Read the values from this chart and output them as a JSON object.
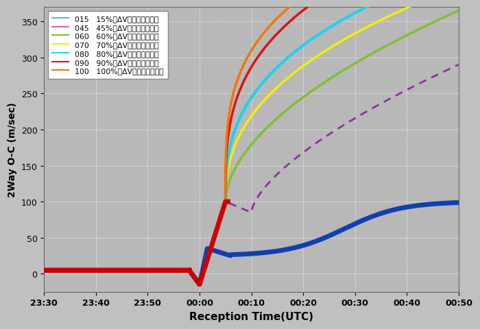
{
  "xlabel": "Reception Time(UTC)",
  "ylabel": "2Way O-C (m/sec)",
  "fig_bg_color": "#c0c0c0",
  "plot_bg_color": "#b8b8b8",
  "ylim": [
    -25,
    370
  ],
  "yticks": [
    0,
    50,
    100,
    150,
    200,
    250,
    300,
    350
  ],
  "xtick_labels": [
    "23:30",
    "23:40",
    "23:50",
    "00:00",
    "00:10",
    "00:20",
    "00:30",
    "00:40",
    "00:50"
  ],
  "legend_entries": [
    {
      "code": "015",
      "label": "15%のΔVで停止した場合",
      "color": "#5ab4e0"
    },
    {
      "code": "045",
      "label": "45%のΔVで停止した場合",
      "color": "#e060b0"
    },
    {
      "code": "060",
      "label": "60%のΔVで停止した場合",
      "color": "#80c030"
    },
    {
      "code": "070",
      "label": "70%のΔVで停止した場合",
      "color": "#f0f000"
    },
    {
      "code": "080",
      "label": "80%のΔVで停止した場合",
      "color": "#20d0f0"
    },
    {
      "code": "090",
      "label": "90%のΔVで停止した場合",
      "color": "#e01010"
    },
    {
      "code": "100",
      "label": "100%のΔVで停止した場合",
      "color": "#f07800"
    }
  ],
  "blue_color": "#1040b0",
  "red_color": "#cc0000",
  "purple_color": "#9030a0"
}
